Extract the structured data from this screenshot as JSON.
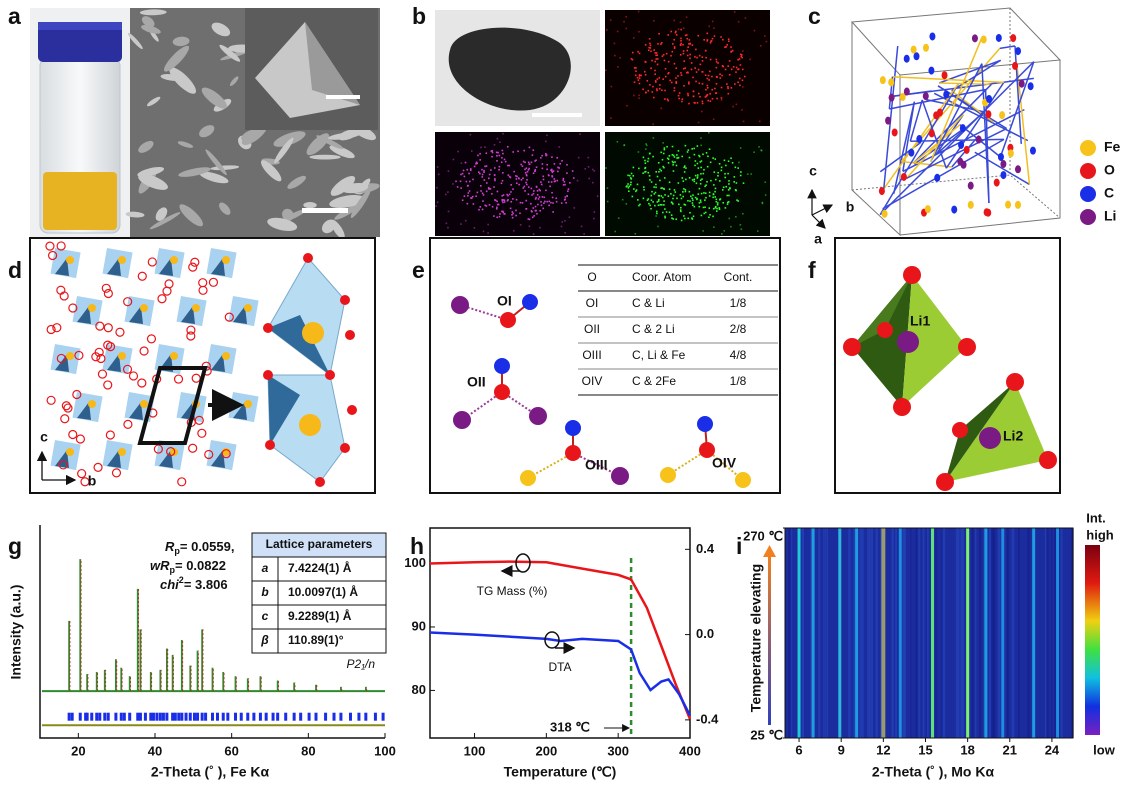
{
  "panel_labels": [
    "a",
    "b",
    "c",
    "d",
    "e",
    "f",
    "g",
    "h",
    "i"
  ],
  "c_axes": [
    "c",
    "b",
    "a"
  ],
  "c_legend": [
    {
      "label": "Fe",
      "color": "#f7c21a"
    },
    {
      "label": "O",
      "color": "#e8161b"
    },
    {
      "label": "C",
      "color": "#1a2ee8"
    },
    {
      "label": "Li",
      "color": "#7a1a84"
    }
  ],
  "d_axes": [
    "c",
    "b"
  ],
  "e": {
    "sites": [
      "OI",
      "OII",
      "OIII",
      "OIV"
    ],
    "table": {
      "header": [
        "O",
        "Coor. Atom",
        "Cont."
      ],
      "rows": [
        [
          "OI",
          "C & Li",
          "1/8"
        ],
        [
          "OII",
          "C & 2 Li",
          "2/8"
        ],
        [
          "OIII",
          "C, Li & Fe",
          "4/8"
        ],
        [
          "OIV",
          "C & 2Fe",
          "1/8"
        ]
      ]
    }
  },
  "f": {
    "sites": [
      "Li1",
      "Li2"
    ]
  },
  "chart_data": [
    {
      "type": "xrd",
      "xlabel": "2-Theta (˚ ), Fe Kα",
      "ylabel": "Intensity (a.u.)",
      "xlim": [
        10,
        100
      ],
      "xticks": [
        20,
        40,
        60,
        80,
        100
      ],
      "ylim": [
        0,
        100
      ],
      "fit_stats": [
        {
          "symbol": "R",
          "sub": "p",
          "text": "= 0.0559,"
        },
        {
          "symbol": "wR",
          "sub": "p",
          "text": "= 0.0822"
        },
        {
          "symbol": "chi",
          "sup": "2",
          "text": "= 3.806"
        }
      ],
      "lattice_table": {
        "title": "Lattice parameters",
        "rows": [
          [
            "a",
            "7.4224(1) Å"
          ],
          [
            "b",
            "10.0097(1) Å"
          ],
          [
            "c",
            "9.2289(1) Å"
          ],
          [
            "β",
            "110.89(1)°"
          ]
        ]
      },
      "space_group": "P2₁/n",
      "baseline": 22,
      "peaks": {
        "x": [
          17.6,
          20.5,
          22.3,
          24.8,
          26.9,
          29.8,
          31.2,
          33.4,
          35.5,
          36.2,
          38.9,
          41.4,
          43.1,
          44.6,
          47.0,
          49.2,
          51.1,
          52.3,
          55.0,
          57.8,
          61.0,
          64.2,
          67.5,
          72.0,
          76.3,
          82.0,
          88.5,
          95.0
        ],
        "values": [
          55,
          84,
          30,
          31,
          32,
          37,
          33,
          29,
          70,
          51,
          31,
          32,
          42,
          39,
          46,
          34,
          41,
          51,
          33,
          31,
          29,
          28,
          29,
          27,
          26,
          25,
          24,
          24
        ],
        "color": "#d42020"
      },
      "fit_color": "#2e8b2e",
      "bragg_level": 10,
      "bragg_color": "#1a2ee8",
      "bragg_x": [
        17.6,
        18.4,
        20.5,
        21.9,
        22.3,
        23.5,
        24.8,
        25.6,
        26.9,
        27.8,
        29.8,
        31.2,
        32.0,
        33.4,
        35.5,
        36.2,
        37.5,
        38.9,
        39.6,
        40.5,
        41.4,
        42.2,
        43.1,
        44.6,
        45.3,
        46.2,
        47.0,
        48.1,
        49.2,
        50.3,
        51.1,
        52.3,
        53.2,
        55.0,
        56.3,
        57.8,
        59.0,
        61.0,
        62.5,
        64.2,
        65.8,
        67.5,
        69.0,
        70.8,
        72.0,
        74.1,
        76.3,
        78.0,
        80.2,
        82.0,
        84.5,
        86.7,
        88.5,
        91.0,
        93.2,
        95.0,
        97.5,
        99.5
      ],
      "difference_level": 6,
      "difference_color": "#8a8a1a"
    },
    {
      "type": "tg-dta",
      "xlabel": "Temperature (℃)",
      "xlim": [
        38,
        400
      ],
      "xticks": [
        100,
        200,
        300,
        400
      ],
      "ylim": [
        72.5,
        105.6
      ],
      "yticks": [
        80,
        90,
        100
      ],
      "y2lim": [
        -0.485,
        0.5
      ],
      "y2ticks": [
        0.4,
        {
          "value": 0,
          "label": "0.0"
        },
        -0.4
      ],
      "series": [
        {
          "name": "TG Mass (%)",
          "color": "#e8161b",
          "x": [
            38,
            100,
            150,
            200,
            250,
            300,
            318,
            340,
            360,
            380,
            400
          ],
          "values": [
            100,
            100.2,
            100.3,
            100.2,
            99.2,
            98.2,
            97.5,
            93,
            87,
            81,
            75.5
          ]
        },
        {
          "name": "DTA",
          "color": "#1a2ee8",
          "axis": "y2",
          "x": [
            38,
            100,
            150,
            200,
            220,
            250,
            300,
            318,
            330,
            345,
            360,
            370,
            385,
            400
          ],
          "values": [
            0.01,
            0.0,
            -0.01,
            -0.02,
            -0.03,
            -0.02,
            -0.03,
            -0.07,
            -0.18,
            -0.26,
            -0.22,
            -0.21,
            -0.28,
            -0.38
          ]
        }
      ],
      "marker": {
        "x": 318,
        "label": "318 ℃",
        "color": "#2e8b2e"
      }
    },
    {
      "type": "heatmap",
      "xlabel": "2-Theta (˚ ), Mo Kα",
      "ylabel": "Temperature elevating",
      "xlim": [
        5.0,
        25.5
      ],
      "xticks": [
        6,
        9,
        12,
        15,
        18,
        21,
        24
      ],
      "ylim": [
        25,
        270
      ],
      "yticks": [
        {
          "value": 25,
          "label": "25 ℃"
        },
        {
          "value": 270,
          "label": "270 ℃"
        }
      ],
      "colorbar_labels": [
        "Int.",
        "high",
        "low"
      ],
      "lines": {
        "x": [
          6.0,
          7.0,
          8.9,
          10.1,
          12.0,
          13.2,
          15.5,
          18.0,
          19.3,
          20.5,
          22.7,
          24.4
        ],
        "colors": [
          "#21c8d8",
          "#1e9ee0",
          "#2bb6dc",
          "#1e9ee0",
          "#9a9a70",
          "#1e8ee0",
          "#5ee07a",
          "#7ef06a",
          "#1e9ee0",
          "#1e8ee0",
          "#1e9ee0",
          "#1e8ee0"
        ]
      }
    }
  ]
}
